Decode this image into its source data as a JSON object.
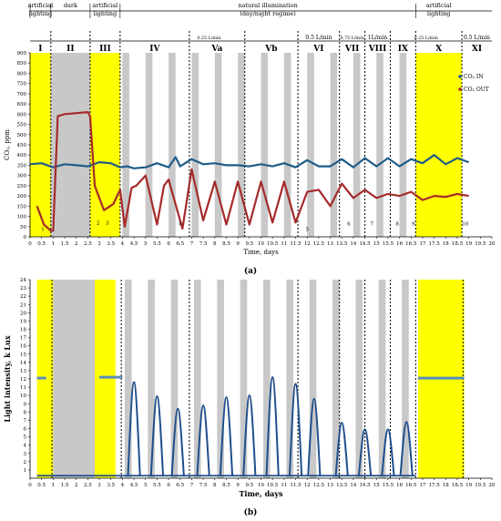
{
  "colors": {
    "yellow": "#ffff00",
    "gray": "#c8c8c8",
    "co2_in": "#1f5c87",
    "co2_out": "#a52a2a",
    "light": "#1f4e8c",
    "light_flat": "#5a8fb8"
  },
  "chart_data": [
    {
      "type": "line",
      "panel_label": "(a)",
      "xlabel": "Time, days",
      "ylabel": "CO₂, ppm",
      "xlim": [
        0,
        20
      ],
      "ylim": [
        0,
        900
      ],
      "x_ticks": [
        "0",
        "0.5",
        "1",
        "1.5",
        "2",
        "2.5",
        "3",
        "3.5",
        "4",
        "4.5",
        "5",
        "5.5",
        "6",
        "6.5",
        "7",
        "7.5",
        "8",
        "8.5",
        "9",
        "9.5",
        "10",
        "10.5",
        "11",
        "11.5",
        "12",
        "12.5",
        "13",
        "13.5",
        "14",
        "14.5",
        "15",
        "15.5",
        "16",
        "16.5",
        "17",
        "17.5",
        "18",
        "18.5",
        "19",
        "19.5",
        "20"
      ],
      "y_ticks": [
        "0",
        "50",
        "100",
        "150",
        "200",
        "250",
        "300",
        "350",
        "400",
        "450",
        "500",
        "550",
        "600",
        "650",
        "700",
        "750",
        "800",
        "850",
        "900"
      ],
      "regimes": [
        {
          "label": "artificial\nlighting",
          "x0": 0,
          "x1": 0.9
        },
        {
          "label": "dark",
          "x0": 0.9,
          "x1": 2.6
        },
        {
          "label": "artificial\nlighting",
          "x0": 2.6,
          "x1": 3.9
        },
        {
          "label": "natural illumination\n(day/night regime)",
          "x0": 3.9,
          "x1": 16.7
        },
        {
          "label": "artificial\nlighting",
          "x0": 16.7,
          "x1": 18.7
        }
      ],
      "flow_labels": [
        {
          "text": "0.25 L/min",
          "x0": 3.9,
          "x1": 11.6
        },
        {
          "text": "0.5 L/min",
          "x0": 11.6,
          "x1": 13.4
        },
        {
          "text": "0.75 L/min",
          "x0": 13.4,
          "x1": 14.5
        },
        {
          "text": "1L/min",
          "x0": 14.5,
          "x1": 15.6
        },
        {
          "text": "0.25 L/min",
          "x0": 15.6,
          "x1": 18.7
        },
        {
          "text": "0.5 L/min",
          "x0": 18.7,
          "x1": 20
        }
      ],
      "phases": [
        "I",
        "II",
        "III",
        "IV",
        "Va",
        "Vb",
        "VI",
        "VII",
        "VIII",
        "IX",
        "X",
        "XI"
      ],
      "phase_bounds": [
        0,
        0.9,
        2.6,
        3.9,
        6.9,
        9.3,
        11.6,
        13.4,
        14.5,
        15.6,
        16.7,
        18.7,
        20
      ],
      "point_labels": [
        {
          "text": "1",
          "x": 0.55,
          "y": 30
        },
        {
          "text": "2",
          "x": 2.95,
          "y": 60
        },
        {
          "text": "3",
          "x": 3.35,
          "y": 60
        },
        {
          "text": "4",
          "x": 6.5,
          "y": 55
        },
        {
          "text": "5",
          "x": 12.0,
          "y": 30
        },
        {
          "text": "6",
          "x": 13.8,
          "y": 55
        },
        {
          "text": "7",
          "x": 14.8,
          "y": 55
        },
        {
          "text": "8",
          "x": 15.9,
          "y": 55
        },
        {
          "text": "9",
          "x": 16.6,
          "y": 55
        },
        {
          "text": "10",
          "x": 18.85,
          "y": 55
        }
      ],
      "series": [
        {
          "name": "CO₂ IN",
          "color": "#1f5c87",
          "x": [
            0,
            0.5,
            1,
            1.5,
            2,
            2.5,
            3,
            3.5,
            3.9,
            4.2,
            4.5,
            5,
            5.5,
            6,
            6.3,
            6.5,
            7,
            7.5,
            8,
            8.5,
            9,
            9.5,
            10,
            10.5,
            11,
            11.5,
            12,
            12.5,
            13,
            13.5,
            14,
            14.5,
            15,
            15.5,
            16,
            16.5,
            17,
            17.5,
            18,
            18.5,
            19
          ],
          "values": [
            355,
            360,
            340,
            355,
            350,
            345,
            365,
            360,
            340,
            345,
            335,
            340,
            360,
            340,
            390,
            345,
            380,
            355,
            360,
            350,
            350,
            345,
            355,
            345,
            360,
            340,
            375,
            345,
            345,
            380,
            340,
            385,
            345,
            385,
            345,
            380,
            360,
            400,
            355,
            385,
            365
          ]
        },
        {
          "name": "CO₂ OUT",
          "color": "#a52a2a",
          "x": [
            0.3,
            0.6,
            0.9,
            1.0,
            1.2,
            1.5,
            2,
            2.5,
            2.6,
            2.8,
            3.2,
            3.6,
            3.9,
            4.1,
            4.4,
            4.6,
            5.0,
            5.5,
            5.8,
            6.0,
            6.6,
            7,
            7.5,
            8,
            8.5,
            9,
            9.5,
            10,
            10.5,
            11,
            11.5,
            12,
            12.5,
            13,
            13.5,
            14,
            14.5,
            15,
            15.5,
            16,
            16.5,
            17,
            17.5,
            18,
            18.5,
            19
          ],
          "values": [
            150,
            60,
            30,
            30,
            590,
            600,
            605,
            610,
            590,
            250,
            130,
            160,
            230,
            50,
            240,
            250,
            300,
            60,
            250,
            280,
            40,
            330,
            80,
            270,
            60,
            270,
            60,
            270,
            70,
            270,
            70,
            220,
            230,
            150,
            260,
            190,
            230,
            190,
            210,
            200,
            220,
            180,
            200,
            195,
            210,
            200
          ]
        }
      ],
      "legend": {
        "position": "right",
        "entries": [
          "CO₂ IN",
          "CO₂ OUT"
        ]
      },
      "grid": false
    },
    {
      "type": "line",
      "panel_label": "(b)",
      "xlabel": "Time, days",
      "ylabel": "Light intensity, k Lux",
      "xlim": [
        0,
        20
      ],
      "ylim": [
        0,
        24
      ],
      "x_ticks": [
        "0",
        "0.5",
        "1",
        "1.5",
        "2",
        "2.5",
        "3",
        "3.5",
        "4",
        "4.5",
        "5",
        "5.5",
        "6",
        "6.5",
        "7",
        "7.5",
        "8",
        "8.5",
        "9",
        "9.5",
        "10",
        "10.5",
        "11",
        "11.5",
        "12",
        "12.5",
        "13",
        "13.5",
        "14",
        "14.5",
        "15",
        "15.5",
        "16",
        "16.5",
        "17",
        "17.5",
        "18",
        "18.5",
        "19",
        "19.5",
        "20"
      ],
      "y_ticks": [
        "1",
        "2",
        "3",
        "4",
        "5",
        "6",
        "7",
        "8",
        "9",
        "10",
        "11",
        "12",
        "13",
        "14",
        "15",
        "16",
        "17",
        "18",
        "19",
        "20",
        "21",
        "22",
        "23",
        "24"
      ],
      "series": [
        {
          "name": "",
          "color": "#1f4e8c",
          "peaks": [
            {
              "x": 4.5,
              "y": 11.6
            },
            {
              "x": 5.5,
              "y": 9.9
            },
            {
              "x": 6.4,
              "y": 8.4
            },
            {
              "x": 7.5,
              "y": 8.8
            },
            {
              "x": 8.5,
              "y": 9.8
            },
            {
              "x": 9.5,
              "y": 10.0
            },
            {
              "x": 10.5,
              "y": 12.2
            },
            {
              "x": 11.5,
              "y": 11.4
            },
            {
              "x": 12.3,
              "y": 9.6
            },
            {
              "x": 13.5,
              "y": 6.7
            },
            {
              "x": 14.5,
              "y": 5.9
            },
            {
              "x": 15.5,
              "y": 5.9
            },
            {
              "x": 16.3,
              "y": 6.8
            }
          ]
        },
        {
          "name": "",
          "color": "#5a8fb8",
          "segments": [
            {
              "x0": 0.3,
              "x1": 0.7,
              "y": 12.1
            },
            {
              "x0": 3.0,
              "x1": 4.0,
              "y": 12.2
            },
            {
              "x0": 16.8,
              "x1": 18.8,
              "y": 12.1
            }
          ]
        }
      ],
      "grid": false
    }
  ]
}
